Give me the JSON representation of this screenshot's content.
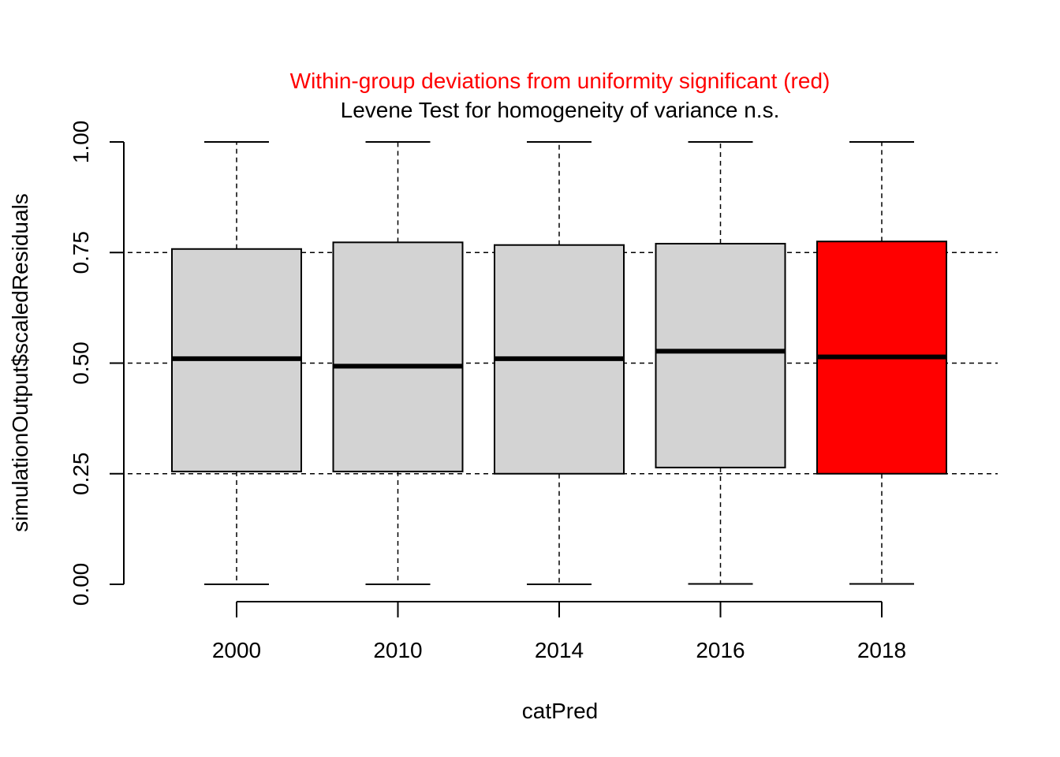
{
  "chart_data": {
    "type": "boxplot",
    "title": "Within-group deviations from uniformity significant (red)",
    "subtitle": "Levene Test for homogeneity of variance n.s.",
    "xlabel": "catPred",
    "ylabel": "simulationOutput$scaledResiduals",
    "ylim": [
      0,
      1
    ],
    "y_ticks": [
      "0.00",
      "0.25",
      "0.50",
      "0.75",
      "1.00"
    ],
    "gridlines": [
      0.25,
      0.5,
      0.75
    ],
    "categories": [
      "2000",
      "2010",
      "2014",
      "2016",
      "2018"
    ],
    "boxes": [
      {
        "category": "2000",
        "min": 0.0,
        "q1": 0.255,
        "median": 0.51,
        "q3": 0.758,
        "max": 1.0,
        "highlight": false
      },
      {
        "category": "2010",
        "min": 0.0,
        "q1": 0.255,
        "median": 0.493,
        "q3": 0.773,
        "max": 1.0,
        "highlight": false
      },
      {
        "category": "2014",
        "min": 0.0,
        "q1": 0.25,
        "median": 0.51,
        "q3": 0.767,
        "max": 1.0,
        "highlight": false
      },
      {
        "category": "2016",
        "min": 0.001,
        "q1": 0.264,
        "median": 0.527,
        "q3": 0.77,
        "max": 1.0,
        "highlight": false
      },
      {
        "category": "2018",
        "min": 0.001,
        "q1": 0.25,
        "median": 0.514,
        "q3": 0.775,
        "max": 1.0,
        "highlight": true
      }
    ]
  },
  "colors": {
    "title": "#ff0000",
    "subtitle": "#000000",
    "box_fill": "#d3d3d3",
    "box_highlight": "#ff0000",
    "stroke": "#000000"
  }
}
